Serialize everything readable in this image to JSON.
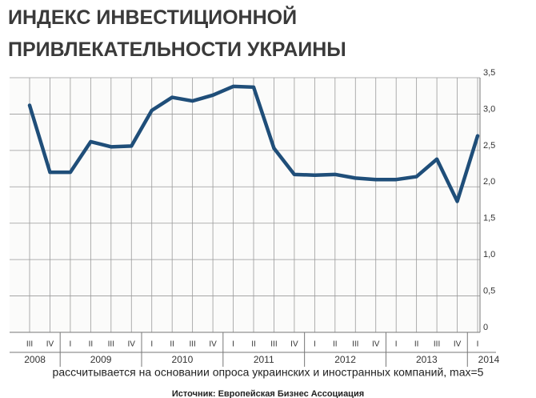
{
  "chart_data": {
    "type": "line",
    "title": [
      "ИНДЕКС ИНВЕСТИЦИОННОЙ",
      "ПРИВЛЕКАТЕЛЬНОСТИ УКРАИНЫ"
    ],
    "categories": [
      "III",
      "IV",
      "I",
      "II",
      "III",
      "IV",
      "I",
      "II",
      "III",
      "IV",
      "I",
      "II",
      "III",
      "IV",
      "I",
      "II",
      "III",
      "IV",
      "I",
      "II",
      "III",
      "IV",
      "I"
    ],
    "years": [
      "2008",
      "2009",
      "2010",
      "2011",
      "2012",
      "2013",
      "2014"
    ],
    "series": [
      {
        "color": "#1f4e79",
        "values": [
          3.12,
          2.2,
          2.2,
          2.62,
          2.55,
          2.56,
          3.05,
          3.23,
          3.18,
          3.26,
          3.38,
          3.37,
          2.53,
          2.17,
          2.16,
          2.17,
          2.12,
          2.1,
          2.1,
          2.14,
          2.38,
          1.8,
          2.7
        ]
      }
    ],
    "ylim": [
      0,
      3.5
    ],
    "yticks": [
      0,
      {
        "value": 0.5,
        "label": "0,5"
      },
      {
        "value": 1,
        "label": "1,0"
      },
      {
        "value": 1.5,
        "label": "1,5"
      },
      {
        "value": 2,
        "label": "2,0"
      },
      {
        "value": 2.5,
        "label": "2,5"
      },
      {
        "value": 3,
        "label": "3,0"
      },
      {
        "value": 3.5,
        "label": "3,5"
      }
    ],
    "grid": true,
    "note": "рассчитывается на основании опроса украинских и иностранных компаний, max=5",
    "source": "Источник: Европейская Бизнес Ассоциация"
  }
}
